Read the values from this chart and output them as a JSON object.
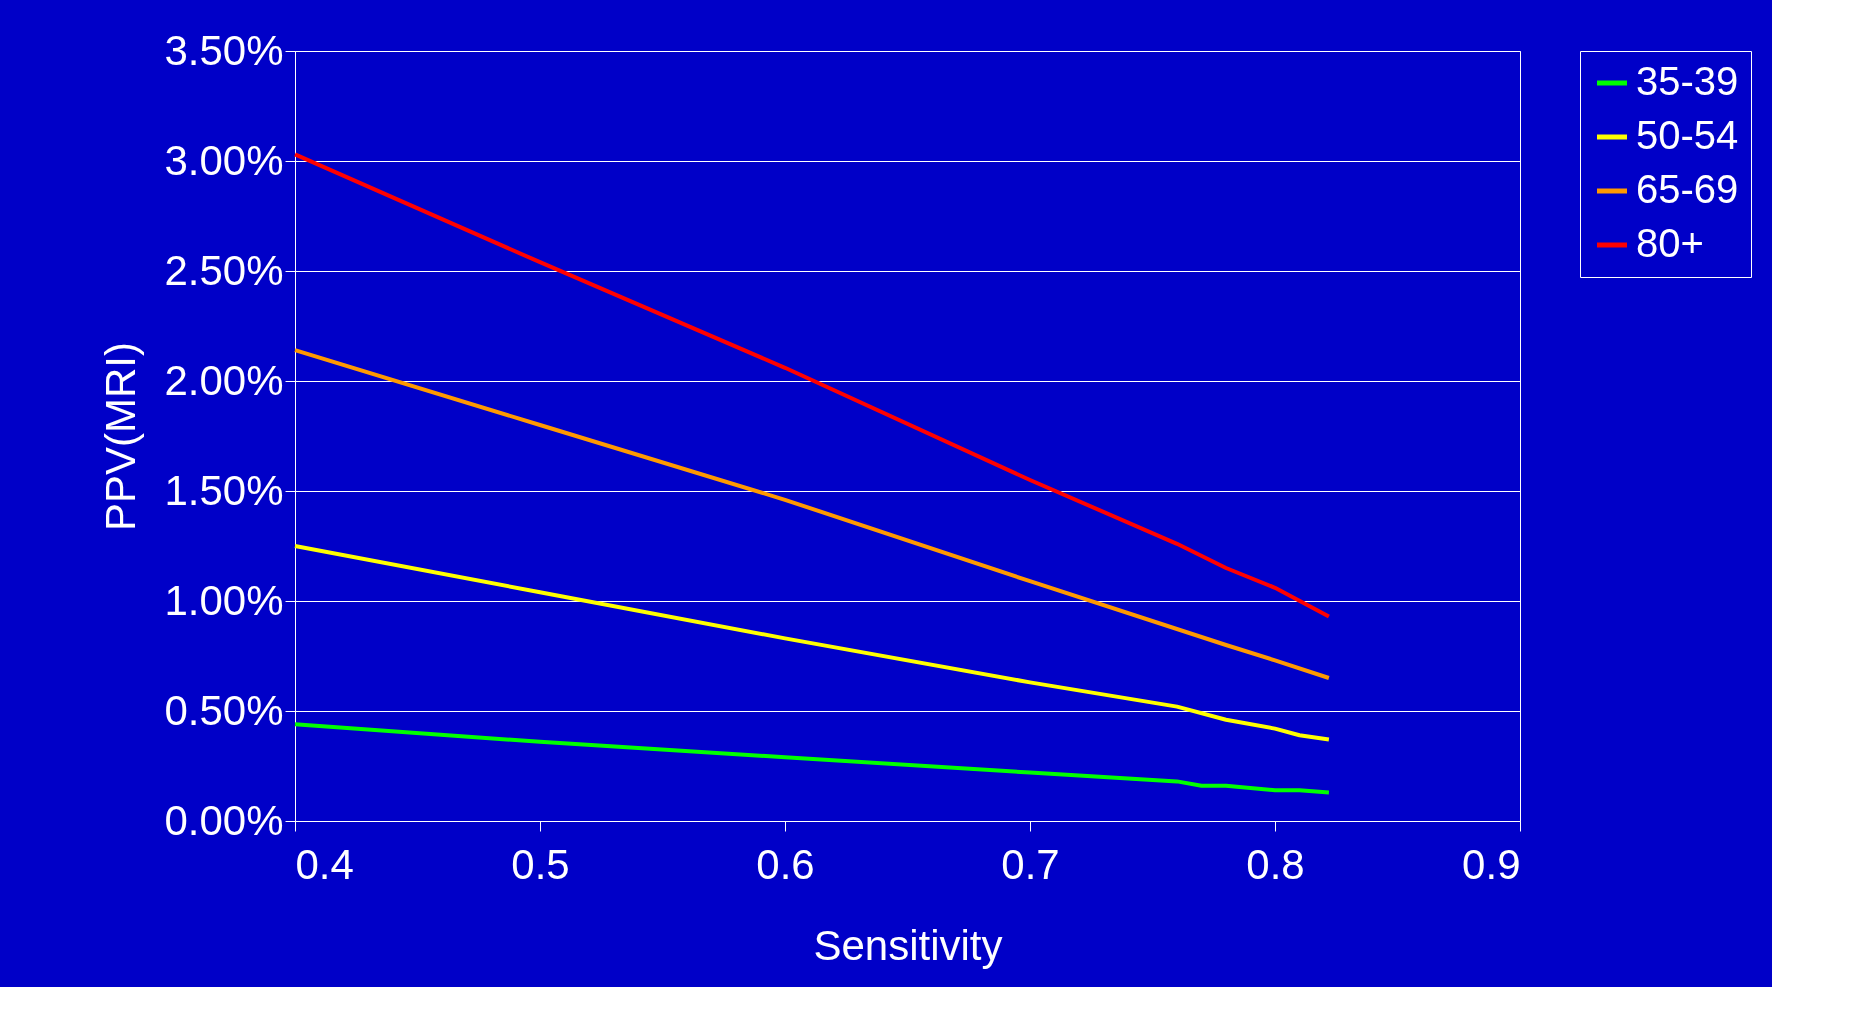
{
  "chart_data": {
    "type": "line",
    "xlabel": "Sensitivity",
    "ylabel": "PPV(MRI)",
    "xlim": [
      0.4,
      0.9
    ],
    "xticks": [
      0.4,
      0.5,
      0.6,
      0.7,
      0.8,
      0.9
    ],
    "ylim": [
      0,
      3.5
    ],
    "yticks": [
      {
        "value": 0,
        "label": "0.00%"
      },
      {
        "value": 0.5,
        "label": "0.50%"
      },
      {
        "value": 1,
        "label": "1.00%"
      },
      {
        "value": 1.5,
        "label": "1.50%"
      },
      {
        "value": 2,
        "label": "2.00%"
      },
      {
        "value": 2.5,
        "label": "2.50%"
      },
      {
        "value": 3,
        "label": "3.00%"
      },
      {
        "value": 3.5,
        "label": "3.50%"
      }
    ],
    "grid": "y",
    "legend": "right",
    "marker": "none",
    "line_style": "solid",
    "series": [
      {
        "name": "35-39",
        "color": "#00ff00",
        "x": [
          0.4,
          0.5,
          0.6,
          0.7,
          0.76,
          0.77,
          0.78,
          0.8,
          0.81,
          0.822
        ],
        "values": [
          0.44,
          0.36,
          0.29,
          0.22,
          0.18,
          0.16,
          0.16,
          0.14,
          0.14,
          0.13
        ]
      },
      {
        "name": "50-54",
        "color": "#ffff00",
        "x": [
          0.4,
          0.5,
          0.6,
          0.7,
          0.76,
          0.78,
          0.8,
          0.81,
          0.822
        ],
        "values": [
          1.25,
          1.04,
          0.83,
          0.63,
          0.52,
          0.46,
          0.42,
          0.39,
          0.37
        ]
      },
      {
        "name": "65-69",
        "color": "#ff9900",
        "x": [
          0.4,
          0.5,
          0.6,
          0.7,
          0.78,
          0.8,
          0.822
        ],
        "values": [
          2.14,
          1.8,
          1.46,
          1.09,
          0.8,
          0.73,
          0.65
        ]
      },
      {
        "name": "80+",
        "color": "#ff0000",
        "x": [
          0.4,
          0.5,
          0.6,
          0.7,
          0.76,
          0.78,
          0.8,
          0.822
        ],
        "values": [
          3.03,
          2.54,
          2.06,
          1.55,
          1.26,
          1.15,
          1.06,
          0.93
        ]
      }
    ]
  }
}
